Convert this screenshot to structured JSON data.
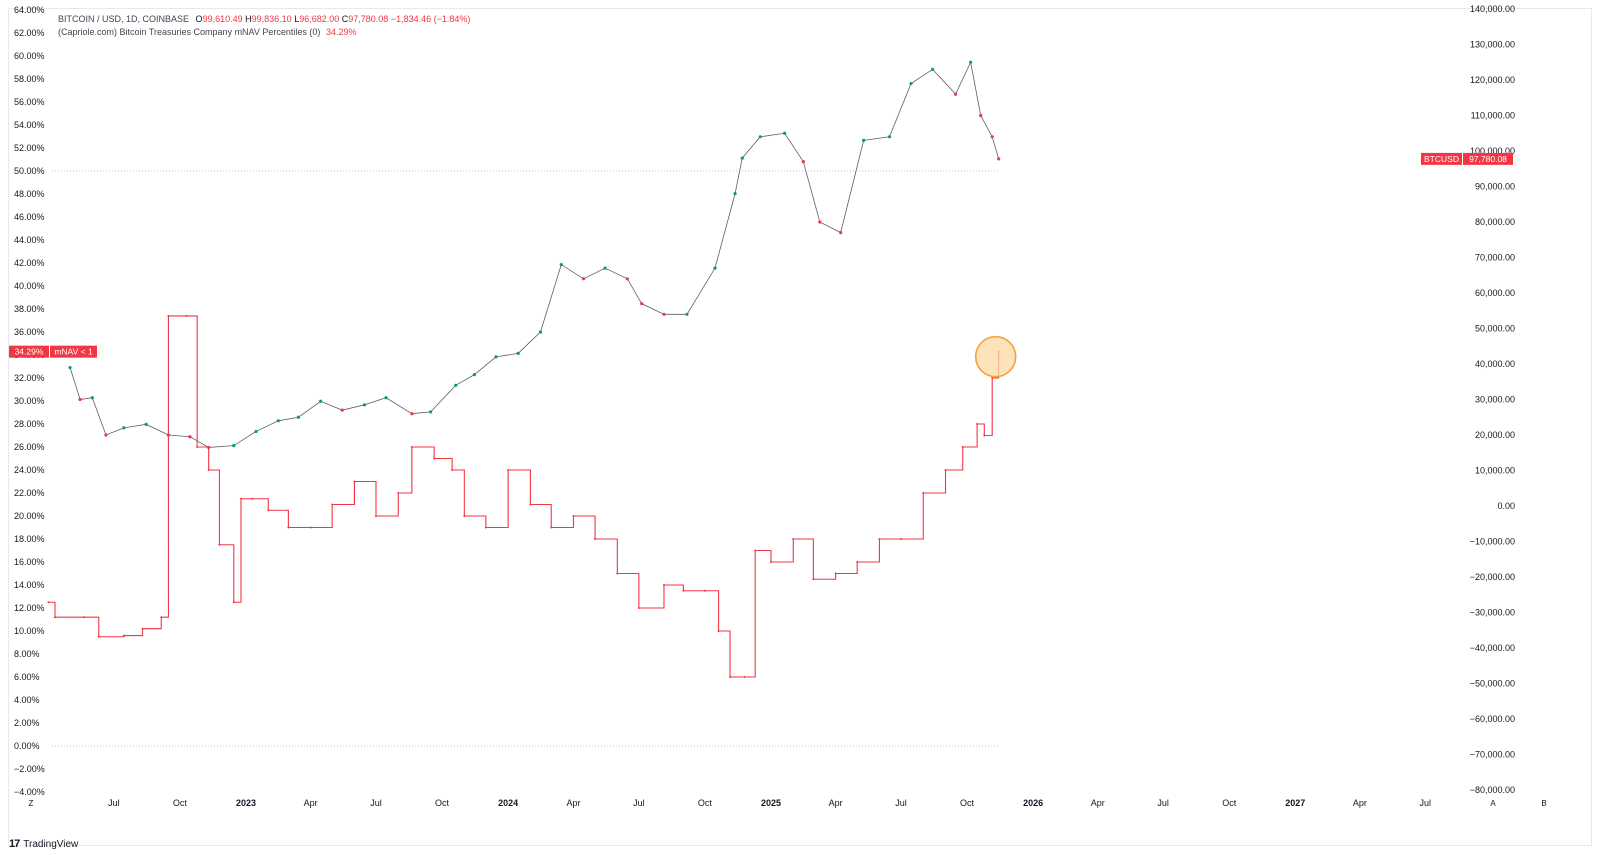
{
  "legend": {
    "symbol_line": "BITCOIN / USD, 1D, COINBASE",
    "o_label": "O",
    "o_value": "99,610.49",
    "h_label": "H",
    "h_value": "99,836.10",
    "l_label": "L",
    "l_value": "96,682.00",
    "c_label": "C",
    "c_value": "97,780.08",
    "change": "−1,834.46 (−1.84%)",
    "indicator_name": "(Capriole.com) Bitcoin Treasuries Company mNAV Percentiles (0)",
    "indicator_value": "34.29%"
  },
  "badges": {
    "left_value": "34.29%",
    "left_label": "mNAV < 1",
    "right_label": "BTCUSD",
    "right_value": "97,780.08"
  },
  "footer": {
    "brand": "TradingView",
    "nav_left": "Z",
    "nav_auto": "A",
    "nav_extra": "B"
  },
  "colors": {
    "indicator": "#f23645",
    "candle_up": "#089981",
    "candle_down": "#f23645",
    "highlight_fill": "#fbd9a6",
    "highlight_stroke": "#f2a33c"
  },
  "chart_data": {
    "type": "line",
    "x_axis": {
      "type": "time",
      "tick_labels": [
        "Jul",
        "Oct",
        "2023",
        "Apr",
        "Jul",
        "Oct",
        "2024",
        "Apr",
        "Jul",
        "Oct",
        "2025",
        "Apr",
        "Jul",
        "Oct",
        "2026",
        "Apr",
        "Jul",
        "Oct",
        "2027",
        "Apr",
        "Jul"
      ],
      "tick_dates": [
        "2022-07-01",
        "2022-10-01",
        "2023-01-01",
        "2023-04-01",
        "2023-07-01",
        "2023-10-01",
        "2024-01-01",
        "2024-04-01",
        "2024-07-01",
        "2024-10-01",
        "2025-01-01",
        "2025-04-01",
        "2025-07-01",
        "2025-10-01",
        "2026-01-01",
        "2026-04-01",
        "2026-07-01",
        "2026-10-01",
        "2027-01-01",
        "2027-04-01",
        "2027-07-01"
      ],
      "range": [
        "2022-04-01",
        "2027-10-15"
      ]
    },
    "left_axis": {
      "ylim": [
        -4,
        64
      ],
      "tick_labels": [
        "64.00%",
        "62.00%",
        "60.00%",
        "58.00%",
        "56.00%",
        "54.00%",
        "52.00%",
        "50.00%",
        "48.00%",
        "46.00%",
        "44.00%",
        "42.00%",
        "40.00%",
        "38.00%",
        "36.00%",
        "34.00%",
        "32.00%",
        "30.00%",
        "28.00%",
        "26.00%",
        "24.00%",
        "22.00%",
        "20.00%",
        "18.00%",
        "16.00%",
        "14.00%",
        "12.00%",
        "10.00%",
        "8.00%",
        "6.00%",
        "4.00%",
        "2.00%",
        "0.00%",
        "−2.00%",
        "−4.00%"
      ],
      "reference_lines": [
        50,
        0
      ]
    },
    "right_axis": {
      "ylim": [
        -80000,
        140000
      ],
      "tick_labels": [
        "140,000.00",
        "130,000.00",
        "120,000.00",
        "110,000.00",
        "100,000.00",
        "90,000.00",
        "80,000.00",
        "70,000.00",
        "60,000.00",
        "50,000.00",
        "40,000.00",
        "30,000.00",
        "20,000.00",
        "10,000.00",
        "0.00",
        "−10,000.00",
        "−20,000.00",
        "−30,000.00",
        "−40,000.00",
        "−50,000.00",
        "−60,000.00",
        "−70,000.00",
        "−80,000.00"
      ]
    },
    "series": [
      {
        "name": "BTCUSD",
        "type": "candlestick-close",
        "axis": "right",
        "x": [
          "2022-05-01",
          "2022-05-15",
          "2022-06-01",
          "2022-06-20",
          "2022-07-15",
          "2022-08-15",
          "2022-09-15",
          "2022-10-15",
          "2022-11-10",
          "2022-12-15",
          "2023-01-15",
          "2023-02-15",
          "2023-03-15",
          "2023-04-15",
          "2023-05-15",
          "2023-06-15",
          "2023-07-15",
          "2023-08-20",
          "2023-09-15",
          "2023-10-20",
          "2023-11-15",
          "2023-12-15",
          "2024-01-15",
          "2024-02-15",
          "2024-03-15",
          "2024-04-15",
          "2024-05-15",
          "2024-06-15",
          "2024-07-05",
          "2024-08-05",
          "2024-09-06",
          "2024-10-15",
          "2024-11-12",
          "2024-11-22",
          "2024-12-17",
          "2025-01-20",
          "2025-02-15",
          "2025-03-10",
          "2025-04-08",
          "2025-05-10",
          "2025-06-15",
          "2025-07-15",
          "2025-08-14",
          "2025-09-15",
          "2025-10-06",
          "2025-10-20",
          "2025-11-05",
          "2025-11-14"
        ],
        "y": [
          39000,
          30000,
          30500,
          20000,
          22000,
          23000,
          20000,
          19500,
          16500,
          17000,
          21000,
          24000,
          25000,
          29500,
          27000,
          28500,
          30500,
          26000,
          26500,
          34000,
          37000,
          42000,
          43000,
          49000,
          68000,
          64000,
          67000,
          64000,
          57000,
          54000,
          54000,
          67000,
          88000,
          98000,
          104000,
          105000,
          97000,
          80000,
          77000,
          103000,
          104000,
          119000,
          123000,
          116000,
          125000,
          110000,
          104000,
          97780
        ]
      },
      {
        "name": "mNAV < 1",
        "axis": "left",
        "x": [
          "2022-04-01",
          "2022-04-10",
          "2022-05-20",
          "2022-06-10",
          "2022-07-15",
          "2022-08-10",
          "2022-09-05",
          "2022-09-15",
          "2022-10-10",
          "2022-10-25",
          "2022-11-10",
          "2022-11-25",
          "2022-12-15",
          "2022-12-25",
          "2023-01-10",
          "2023-02-01",
          "2023-03-01",
          "2023-04-01",
          "2023-05-01",
          "2023-06-01",
          "2023-07-01",
          "2023-08-01",
          "2023-08-20",
          "2023-09-20",
          "2023-10-15",
          "2023-11-01",
          "2023-12-01",
          "2024-01-01",
          "2024-02-01",
          "2024-03-01",
          "2024-04-01",
          "2024-05-01",
          "2024-06-01",
          "2024-07-01",
          "2024-08-05",
          "2024-09-01",
          "2024-10-01",
          "2024-10-20",
          "2024-11-05",
          "2024-11-25",
          "2024-12-10",
          "2025-01-01",
          "2025-02-01",
          "2025-03-01",
          "2025-04-01",
          "2025-05-01",
          "2025-06-01",
          "2025-07-01",
          "2025-08-01",
          "2025-09-01",
          "2025-09-25",
          "2025-10-15",
          "2025-10-25",
          "2025-11-05",
          "2025-11-14"
        ],
        "y": [
          12.5,
          11.2,
          11.2,
          9.5,
          9.6,
          10.2,
          11.2,
          37.4,
          37.4,
          26,
          24,
          17.5,
          12.5,
          21.5,
          21.5,
          20.5,
          19,
          19,
          21,
          23,
          20,
          22,
          26,
          25,
          24,
          20,
          19,
          24,
          21,
          19,
          20,
          18,
          15,
          12,
          14,
          13.5,
          13.5,
          10,
          6,
          6,
          17,
          16,
          18,
          14.5,
          15,
          16,
          18,
          18,
          22,
          24,
          26,
          28,
          27,
          32,
          34.29
        ]
      }
    ],
    "annotations": [
      {
        "type": "circle",
        "target_date": "2025-11-14",
        "target_value_percent": 34.29
      }
    ]
  }
}
